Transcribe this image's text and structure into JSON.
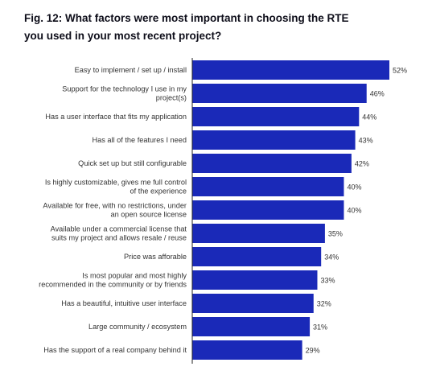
{
  "chart_data": {
    "type": "bar",
    "orientation": "horizontal",
    "title": "Fig. 12: What factors were most important in choosing the RTE you used in your most recent project?",
    "title_lines": [
      "Fig. 12: What factors were most important in choosing the RTE",
      "you used in your most recent project?"
    ],
    "categories": [
      [
        "Easy to implement / set up / install"
      ],
      [
        "Support for the technology I use in my",
        "project(s)"
      ],
      [
        "Has a user interface that fits my application"
      ],
      [
        "Has all of the features I need"
      ],
      [
        "Quick set up but still configurable"
      ],
      [
        "Is highly customizable, gives me full control",
        "of the experience"
      ],
      [
        "Available for free, with no restrictions, under",
        "an open source license"
      ],
      [
        "Available under a commercial license that",
        "suits my project and allows resale / reuse"
      ],
      [
        "Price was afforable"
      ],
      [
        "Is most popular and most highly",
        "recommended in the community or by friends"
      ],
      [
        "Has a beautiful, intuitive user interface"
      ],
      [
        "Large community / ecosystem"
      ],
      [
        "Has the support of a real company behind it"
      ]
    ],
    "values": [
      52,
      46,
      44,
      43,
      42,
      40,
      40,
      35,
      34,
      33,
      32,
      31,
      29
    ],
    "value_labels": [
      "52%",
      "46%",
      "44%",
      "43%",
      "42%",
      "40%",
      "40%",
      "35%",
      "34%",
      "33%",
      "32%",
      "31%",
      "29%"
    ],
    "unit": "%",
    "xlim": [
      0,
      52
    ],
    "grid": false,
    "legend": "none",
    "bar_color": "#1a29b8",
    "axis_color": "#222222"
  }
}
